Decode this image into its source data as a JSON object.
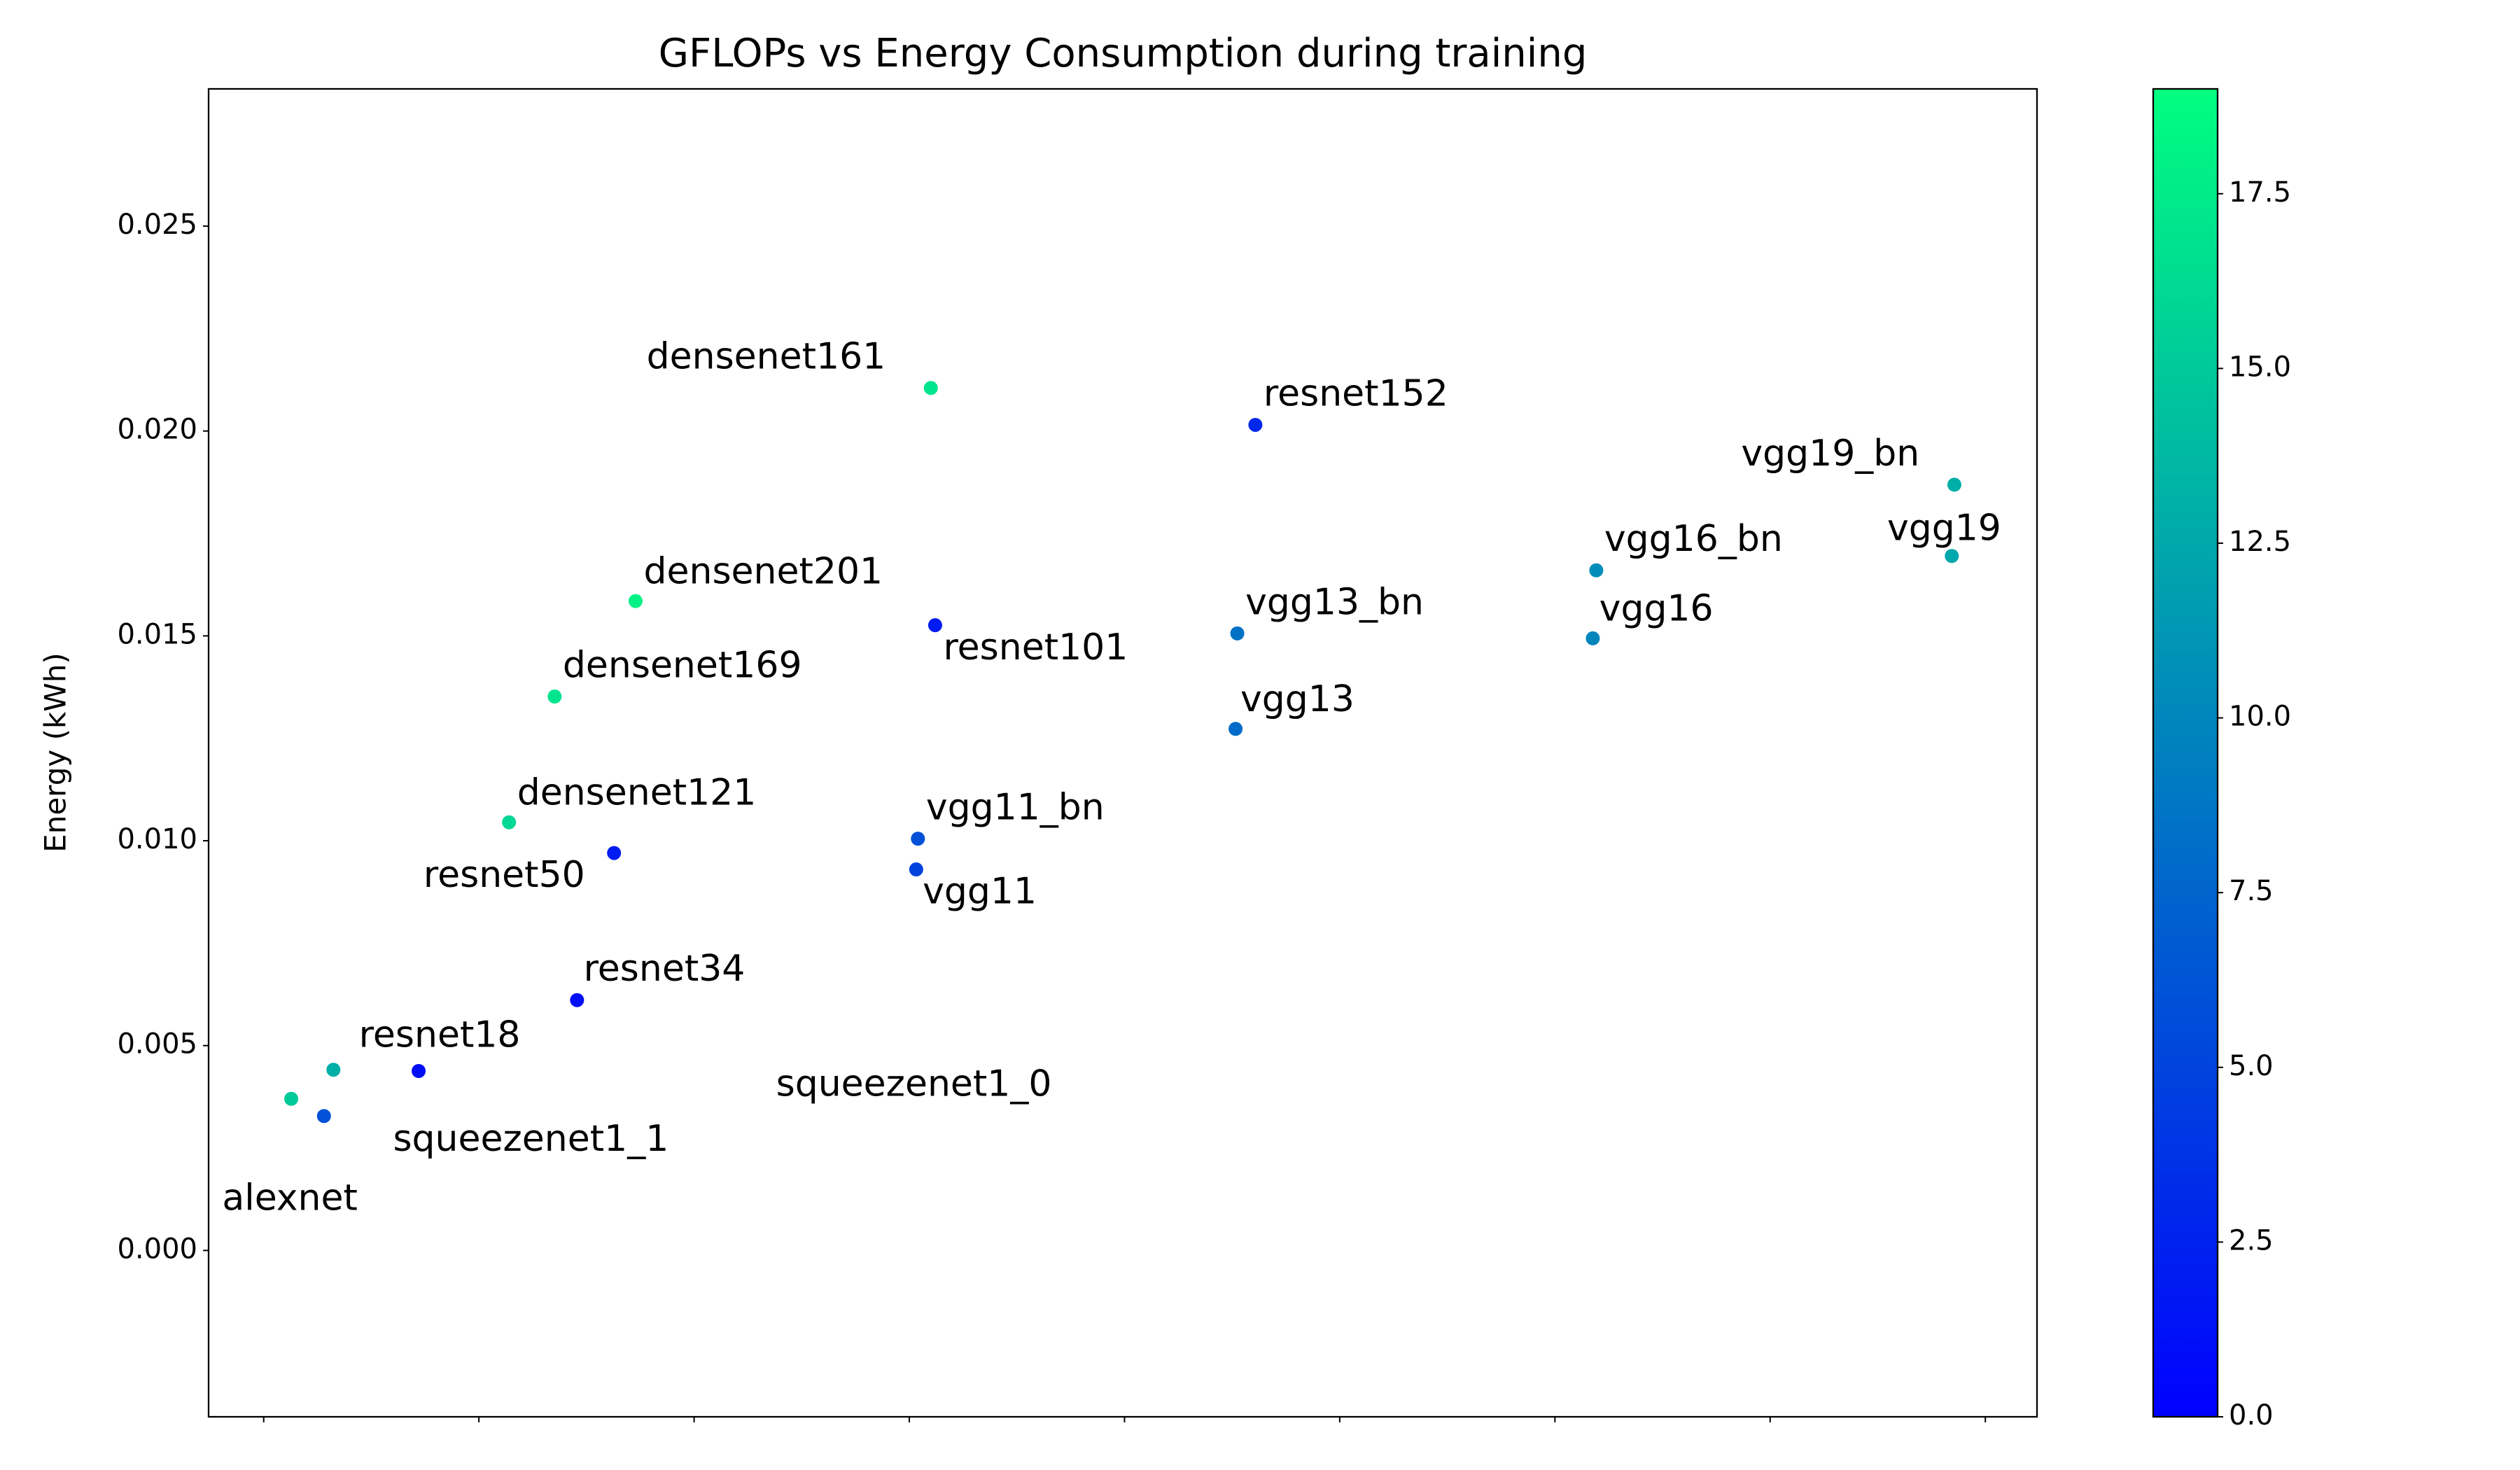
{
  "chart_data": {
    "type": "scatter",
    "title": "GFLOPs vs Energy Consumption during training",
    "ylabel": "Energy (kWh)",
    "labels": [
      "alexnet",
      "squeezenet1_1",
      "squeezenet1_0",
      "resnet18",
      "resnet34",
      "resnet50",
      "resnet101",
      "resnet152",
      "densenet121",
      "densenet169",
      "densenet201",
      "densenet161",
      "vgg11",
      "vgg11_bn",
      "vgg13",
      "vgg13_bn",
      "vgg16",
      "vgg16_bn",
      "vgg19",
      "vgg19_bn"
    ],
    "x": [
      0.7,
      0.32,
      0.81,
      1.8,
      3.64,
      4.07,
      7.8,
      11.52,
      2.85,
      3.38,
      4.32,
      7.75,
      7.58,
      7.6,
      11.29,
      11.31,
      15.44,
      15.48,
      19.61,
      19.64
    ],
    "y": [
      0.00328,
      0.0037,
      0.00441,
      0.00438,
      0.00611,
      0.0097,
      0.01526,
      0.02015,
      0.01045,
      0.01352,
      0.01585,
      0.02105,
      0.0093,
      0.01005,
      0.01273,
      0.01506,
      0.01494,
      0.0166,
      0.01695,
      0.01869
    ],
    "c": [
      6,
      15,
      13,
      1,
      1,
      2,
      2,
      3,
      16,
      17,
      18,
      17,
      5,
      6,
      8,
      8.5,
      10,
      10.5,
      12.5,
      13
    ],
    "colormap": "winter",
    "clim": [
      0,
      19
    ],
    "cticks": [
      {
        "value": 0,
        "label": "0.0"
      },
      2.5,
      {
        "value": 5,
        "label": "5.0"
      },
      7.5,
      {
        "value": 10,
        "label": "10.0"
      },
      12.5,
      {
        "value": 15,
        "label": "15.0"
      },
      17.5
    ],
    "xlim": [
      -0.64,
      20.6
    ],
    "xticks": [
      0,
      2.5,
      5,
      7.5,
      10,
      12.5,
      15,
      17.5,
      20
    ],
    "ylim": [
      -0.00406,
      0.02835
    ],
    "yticks": [
      {
        "value": 0,
        "label": "0.000"
      },
      0.005,
      {
        "value": 0.01,
        "label": "0.010"
      },
      0.015,
      {
        "value": 0.02,
        "label": "0.020"
      },
      0.025
    ]
  }
}
